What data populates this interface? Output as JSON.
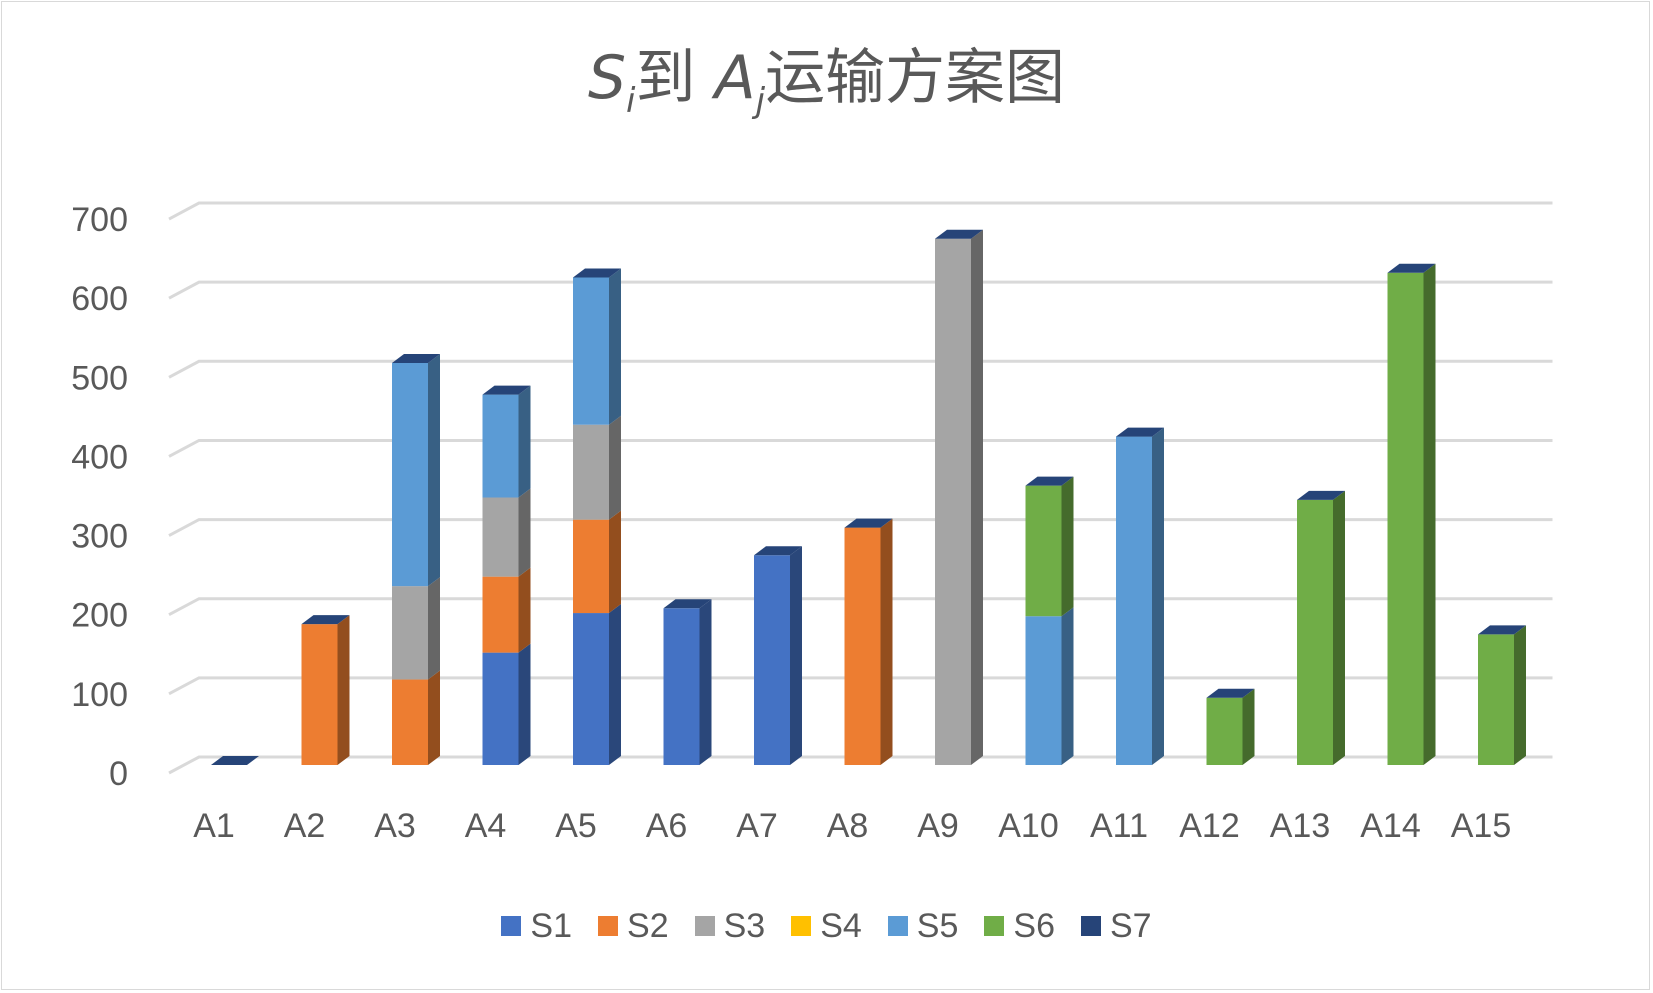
{
  "chart_data": {
    "type": "bar",
    "stacked": true,
    "style": "3d-column",
    "title": {
      "s_italic": "S",
      "s_sub": "i",
      "middle": "到",
      "a_italic": "A",
      "a_sub": "j",
      "rest": "运输方案图"
    },
    "categories": [
      "A1",
      "A2",
      "A3",
      "A4",
      "A5",
      "A6",
      "A7",
      "A8",
      "A9",
      "A10",
      "A11",
      "A12",
      "A13",
      "A14",
      "A15"
    ],
    "series": [
      {
        "name": "S1",
        "color": "#4472C4",
        "values": [
          0,
          0,
          0,
          142,
          192,
          198,
          265,
          0,
          0,
          0,
          0,
          0,
          0,
          0,
          0
        ]
      },
      {
        "name": "S2",
        "color": "#ED7D31",
        "values": [
          0,
          178,
          108,
          96,
          118,
          0,
          0,
          300,
          0,
          0,
          0,
          0,
          0,
          0,
          0
        ]
      },
      {
        "name": "S3",
        "color": "#A5A5A5",
        "values": [
          0,
          0,
          118,
          100,
          120,
          0,
          0,
          0,
          665,
          0,
          0,
          0,
          0,
          0,
          0
        ]
      },
      {
        "name": "S4",
        "color": "#FFC000",
        "values": [
          0,
          0,
          0,
          0,
          0,
          0,
          0,
          0,
          0,
          0,
          0,
          0,
          0,
          0,
          0
        ]
      },
      {
        "name": "S5",
        "color": "#5B9BD5",
        "values": [
          0,
          0,
          282,
          130,
          186,
          0,
          0,
          0,
          0,
          188,
          415,
          0,
          0,
          0,
          0
        ]
      },
      {
        "name": "S6",
        "color": "#70AD47",
        "values": [
          0,
          0,
          0,
          0,
          0,
          0,
          0,
          0,
          0,
          165,
          0,
          85,
          335,
          622,
          165
        ]
      },
      {
        "name": "S7",
        "color": "#264478",
        "values": [
          0,
          0,
          0,
          0,
          0,
          0,
          0,
          0,
          0,
          0,
          0,
          0,
          0,
          0,
          0
        ]
      }
    ],
    "yticks": [
      "0",
      "100",
      "200",
      "300",
      "400",
      "500",
      "600",
      "700"
    ],
    "ylim": [
      0,
      700
    ],
    "grid": true,
    "legend": "bottom",
    "xlabel": "",
    "ylabel": ""
  }
}
